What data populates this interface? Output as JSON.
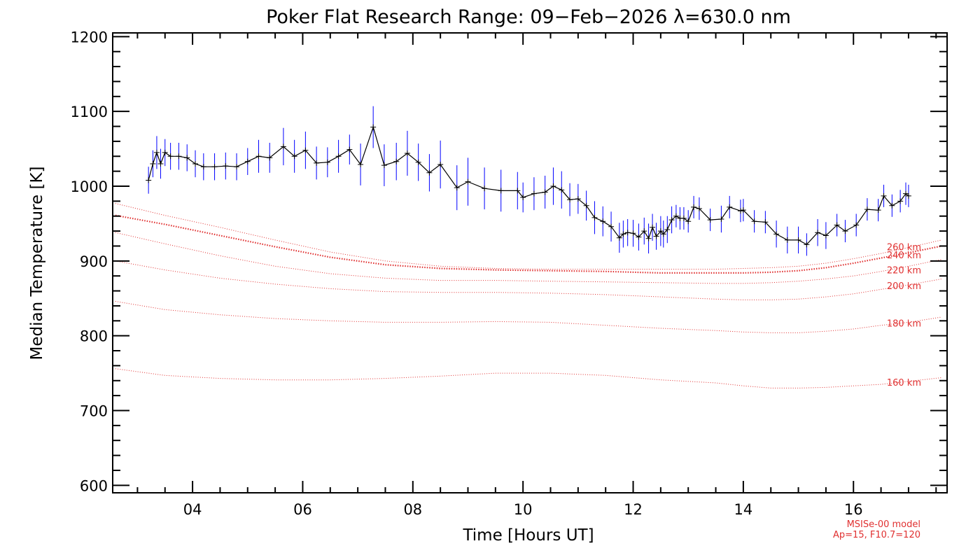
{
  "chart_data": {
    "type": "line",
    "title": "Poker Flat Research Range: 09−Feb−2026 λ=630.0 nm",
    "xlabel": "Time [Hours UT]",
    "ylabel": "Median Temperature [K]",
    "xlim": [
      2.55,
      17.7
    ],
    "ylim": [
      590,
      1205
    ],
    "x_ticks": [
      4,
      6,
      8,
      10,
      12,
      14,
      16
    ],
    "x_tick_labels": [
      "04",
      "06",
      "08",
      "10",
      "12",
      "14",
      "16"
    ],
    "y_ticks": [
      600,
      700,
      800,
      900,
      1000,
      1100,
      1200
    ],
    "y_tick_labels": [
      "600",
      "700",
      "800",
      "900",
      "1000",
      "1100",
      "1200"
    ],
    "colors": {
      "measured_line": "#000000",
      "error_bars": "#0000ff",
      "model": "#e03030"
    },
    "measured": {
      "name": "Median Temperature",
      "x": [
        3.2,
        3.28,
        3.35,
        3.42,
        3.5,
        3.6,
        3.75,
        3.9,
        4.05,
        4.2,
        4.4,
        4.6,
        4.8,
        5.0,
        5.2,
        5.4,
        5.65,
        5.85,
        6.05,
        6.25,
        6.45,
        6.65,
        6.85,
        7.05,
        7.28,
        7.48,
        7.7,
        7.9,
        8.1,
        8.3,
        8.5,
        8.8,
        9.0,
        9.3,
        9.6,
        9.9,
        10.0,
        10.2,
        10.4,
        10.55,
        10.7,
        10.85,
        11.0,
        11.15,
        11.3,
        11.45,
        11.6,
        11.75,
        11.82,
        11.9,
        12.0,
        12.1,
        12.2,
        12.28,
        12.35,
        12.42,
        12.5,
        12.55,
        12.62,
        12.7,
        12.78,
        12.85,
        12.92,
        13.0,
        13.1,
        13.2,
        13.4,
        13.6,
        13.75,
        13.95,
        14.0,
        14.2,
        14.4,
        14.6,
        14.8,
        15.0,
        15.15,
        15.35,
        15.5,
        15.7,
        15.85,
        16.05,
        16.25,
        16.45,
        16.55,
        16.7,
        16.85,
        16.95,
        17.0
      ],
      "y": [
        1008,
        1030,
        1045,
        1030,
        1045,
        1040,
        1040,
        1038,
        1030,
        1026,
        1026,
        1027,
        1026,
        1033,
        1040,
        1038,
        1053,
        1040,
        1048,
        1031,
        1032,
        1040,
        1049,
        1029,
        1079,
        1028,
        1033,
        1044,
        1032,
        1018,
        1029,
        998,
        1006,
        997,
        994,
        994,
        985,
        990,
        992,
        1000,
        995,
        982,
        983,
        974,
        958,
        953,
        946,
        931,
        936,
        938,
        937,
        932,
        940,
        930,
        945,
        933,
        940,
        936,
        942,
        955,
        960,
        957,
        957,
        953,
        972,
        970,
        955,
        956,
        972,
        967,
        968,
        953,
        952,
        936,
        928,
        928,
        922,
        938,
        934,
        948,
        940,
        948,
        969,
        968,
        987,
        974,
        980,
        990,
        987
      ],
      "err": [
        18,
        18,
        22,
        20,
        18,
        18,
        18,
        18,
        18,
        18,
        18,
        18,
        18,
        18,
        22,
        20,
        25,
        22,
        25,
        22,
        20,
        22,
        20,
        28,
        28,
        28,
        25,
        30,
        25,
        25,
        32,
        30,
        32,
        28,
        28,
        25,
        20,
        22,
        22,
        25,
        25,
        22,
        20,
        20,
        22,
        20,
        20,
        20,
        18,
        18,
        18,
        18,
        18,
        20,
        18,
        18,
        20,
        18,
        18,
        18,
        15,
        15,
        15,
        15,
        15,
        15,
        15,
        18,
        15,
        15,
        15,
        15,
        15,
        18,
        18,
        18,
        15,
        18,
        18,
        15,
        15,
        15,
        15,
        15,
        15,
        15,
        15,
        15,
        15
      ]
    },
    "model_series": [
      {
        "name": "160 km",
        "label": "160 km",
        "x": [
          2.6,
          3.5,
          4.5,
          5.5,
          6.5,
          7.5,
          8.5,
          9.5,
          10.5,
          11.5,
          12.5,
          13.5,
          14.0,
          14.5,
          15.0,
          15.5,
          16.0,
          16.5,
          17.0,
          17.6
        ],
        "y": [
          756,
          747,
          743,
          741,
          741,
          743,
          746,
          750,
          750,
          747,
          741,
          737,
          733,
          730,
          730,
          731,
          733,
          735,
          739,
          744
        ]
      },
      {
        "name": "180 km",
        "label": "180 km",
        "x": [
          2.6,
          3.5,
          4.5,
          5.5,
          6.5,
          7.5,
          8.5,
          9.5,
          10.5,
          11.5,
          12.5,
          13.5,
          14.0,
          14.5,
          15.0,
          15.5,
          16.0,
          16.5,
          17.0,
          17.6
        ],
        "y": [
          846,
          835,
          828,
          823,
          820,
          818,
          818,
          819,
          818,
          814,
          810,
          807,
          805,
          804,
          804,
          806,
          809,
          814,
          818,
          825
        ]
      },
      {
        "name": "200 km",
        "label": "200 km",
        "x": [
          2.6,
          3.5,
          4.5,
          5.5,
          6.5,
          7.5,
          8.5,
          9.5,
          10.5,
          11.5,
          12.5,
          13.5,
          14.0,
          14.5,
          15.0,
          15.5,
          16.0,
          16.5,
          17.0,
          17.6
        ],
        "y": [
          900,
          888,
          877,
          869,
          863,
          859,
          858,
          858,
          857,
          855,
          852,
          849,
          848,
          848,
          849,
          852,
          856,
          862,
          868,
          876
        ]
      },
      {
        "name": "220 km",
        "label": "220 km",
        "x": [
          2.6,
          3.5,
          4.5,
          5.5,
          6.5,
          7.5,
          8.5,
          9.5,
          10.5,
          11.5,
          12.5,
          13.5,
          14.0,
          14.5,
          15.0,
          15.5,
          16.0,
          16.5,
          17.0,
          17.6
        ],
        "y": [
          938,
          923,
          907,
          893,
          883,
          877,
          874,
          874,
          873,
          872,
          871,
          870,
          870,
          871,
          873,
          876,
          880,
          886,
          893,
          902
        ]
      },
      {
        "name": "240 km",
        "label": "240 km",
        "x": [
          2.6,
          3.5,
          4.5,
          5.5,
          6.5,
          7.5,
          8.5,
          9.5,
          10.5,
          11.5,
          12.5,
          13.5,
          14.0,
          14.5,
          15.0,
          15.5,
          16.0,
          16.5,
          17.0,
          17.6
        ],
        "y": [
          961,
          949,
          934,
          919,
          905,
          895,
          890,
          888,
          887,
          886,
          884,
          884,
          884,
          885,
          887,
          891,
          897,
          904,
          911,
          920
        ]
      },
      {
        "name": "260 km",
        "label": "260 km",
        "x": [
          2.6,
          3.5,
          4.5,
          5.5,
          6.5,
          7.5,
          8.5,
          9.5,
          10.5,
          11.5,
          12.5,
          13.5,
          14.0,
          14.5,
          15.0,
          15.5,
          16.0,
          16.5,
          17.0,
          17.6
        ],
        "y": [
          977,
          961,
          945,
          928,
          912,
          900,
          893,
          890,
          889,
          889,
          889,
          889,
          890,
          891,
          893,
          897,
          903,
          910,
          918,
          928
        ]
      }
    ],
    "annotations": [
      "MSISe-00 model",
      "Ap=15, F10.7=120"
    ]
  }
}
